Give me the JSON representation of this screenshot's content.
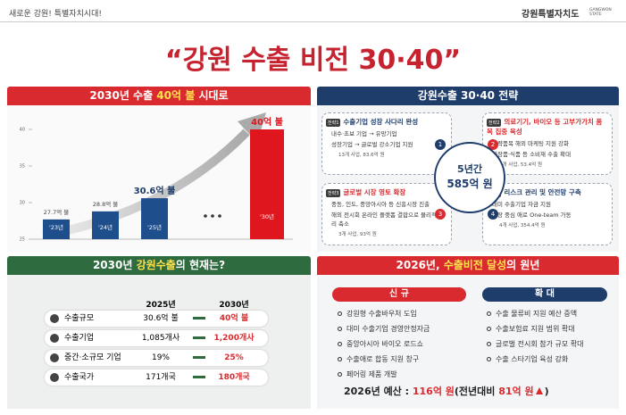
{
  "top": {
    "slogan": "새로운 강원! 특별자치시대!",
    "logo": "강원특별자치도",
    "logo_en": "GANGWON STATE"
  },
  "title": "“강원 수출 비전 30·40”",
  "goal": {
    "header": [
      "2030년 수출 ",
      "40억 불",
      " 시대로"
    ]
  },
  "chart_data": {
    "type": "bar",
    "categories": [
      "'23년",
      "'24년",
      "'25년",
      "'30년"
    ],
    "values": [
      27.7,
      28.8,
      30.6,
      40
    ],
    "value_labels": [
      "27.7억 불",
      "28.8억 불",
      "30.6억 불",
      "40억 불"
    ],
    "colors": [
      "#1f4e8c",
      "#1f4e8c",
      "#1f4e8c",
      "#e0161e"
    ],
    "ylim": [
      25,
      40
    ],
    "yticks": [
      25,
      30,
      35,
      40
    ]
  },
  "strategy": {
    "header": "강원수출 30·40 전략",
    "center": [
      "5년간",
      "585억 원"
    ],
    "items": [
      {
        "tag": "전략1",
        "num": "1",
        "title": "수출기업 성장 사다리 완성",
        "points": [
          "내수·초보 기업 → 유망기업",
          "성장기업 → 글로벌 강소기업 지원"
        ],
        "note": "13개 사업, 83.6억 원"
      },
      {
        "tag": "전략2",
        "num": "2",
        "title": "의료기기, 바이오 등 고부가가치 품목 집중 육성",
        "points": [
          "전략품목 해외 마케팅 지원 강화",
          "화장품·식품 등 소비재 수출 확대"
        ],
        "note": "4개 사업, 53.4억 원"
      },
      {
        "tag": "전략3",
        "num": "3",
        "title": "글로벌 시장 영토 확장",
        "points": [
          "중동, 인도, 중앙아시아 등 신흥시장 진출",
          "해외 전시회 온라인 플랫폼 결합으로 물리적 거리 축소"
        ],
        "note": "3개 사업, 93억 원"
      },
      {
        "tag": "전략4",
        "num": "4",
        "title": "리스크 관리 및 안전망 구축",
        "points": [
          "대미 수출기업 자금 지원",
          "현장 중심 애로 One-team 가동"
        ],
        "note": "4개 사업, 354.4억 원"
      }
    ]
  },
  "status": {
    "header": [
      "2030년 ",
      "강원수출",
      "의 현재는?"
    ],
    "columns": [
      "2025년",
      "2030년"
    ],
    "rows": [
      [
        "수출규모",
        "30.6억 불",
        "40억 불"
      ],
      [
        "수출기업",
        "1,085개사",
        "1,200개사"
      ],
      [
        "중간·소규모 기업",
        "19%",
        "25%"
      ],
      [
        "수출국가",
        "171개국",
        "180개국"
      ]
    ]
  },
  "plan": {
    "header": [
      "2026년, ",
      "수출비전 달성",
      "의 원년"
    ],
    "new": {
      "title": "신 규",
      "items": [
        "강원형 수출바우처 도입",
        "대미 수출기업 경영안정자금",
        "중앙아시아 바이오 로드쇼",
        "수출애로 합동 지원 창구",
        "페어링 제품 개발"
      ]
    },
    "expand": {
      "title": "확 대",
      "items": [
        "수출 물류비 지원 예산 증액",
        "수출보험료 지원 범위 확대",
        "글로벌 전시회 참가 규모 확대",
        "수출 스타기업 육성 강화"
      ]
    },
    "budget": [
      "2026년 예산 : ",
      "116억 원",
      "(전년대비 ",
      "81억 원",
      ")"
    ]
  }
}
